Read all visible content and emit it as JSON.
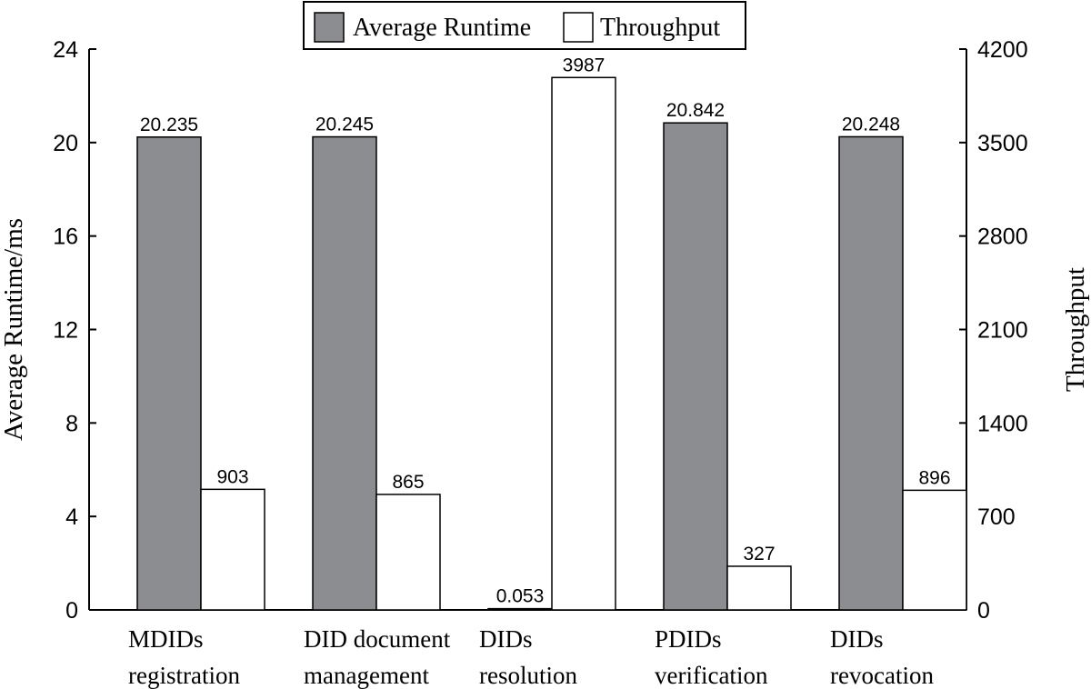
{
  "chart_data": {
    "type": "bar",
    "categories": [
      [
        "MDIDs",
        "registration"
      ],
      [
        "DID document",
        "management"
      ],
      [
        "DIDs",
        "resolution"
      ],
      [
        "PDIDs",
        "verification"
      ],
      [
        "DIDs",
        "revocation"
      ]
    ],
    "series": [
      {
        "name": "Average Runtime",
        "axis": "left",
        "color": "#8c8d90",
        "values": [
          20.235,
          20.245,
          0.053,
          20.842,
          20.248
        ],
        "labels": [
          "20.235",
          "20.245",
          "0.053",
          "20.842",
          "20.248"
        ]
      },
      {
        "name": "Throughput",
        "axis": "right",
        "color": "#ffffff",
        "values": [
          903,
          865,
          3987,
          327,
          896
        ],
        "labels": [
          "903",
          "865",
          "3987",
          "327",
          "896"
        ]
      }
    ],
    "ylabel": "Average Runtime/ms",
    "y2label": "Throughput",
    "ylim": [
      0,
      24
    ],
    "y2lim": [
      0,
      4200
    ],
    "yticks": [
      "0",
      "4",
      "8",
      "12",
      "16",
      "20",
      "24"
    ],
    "y2ticks": [
      "0",
      "700",
      "1400",
      "2100",
      "2800",
      "3500",
      "4200"
    ],
    "legend_position": "top-center",
    "grid": false
  }
}
